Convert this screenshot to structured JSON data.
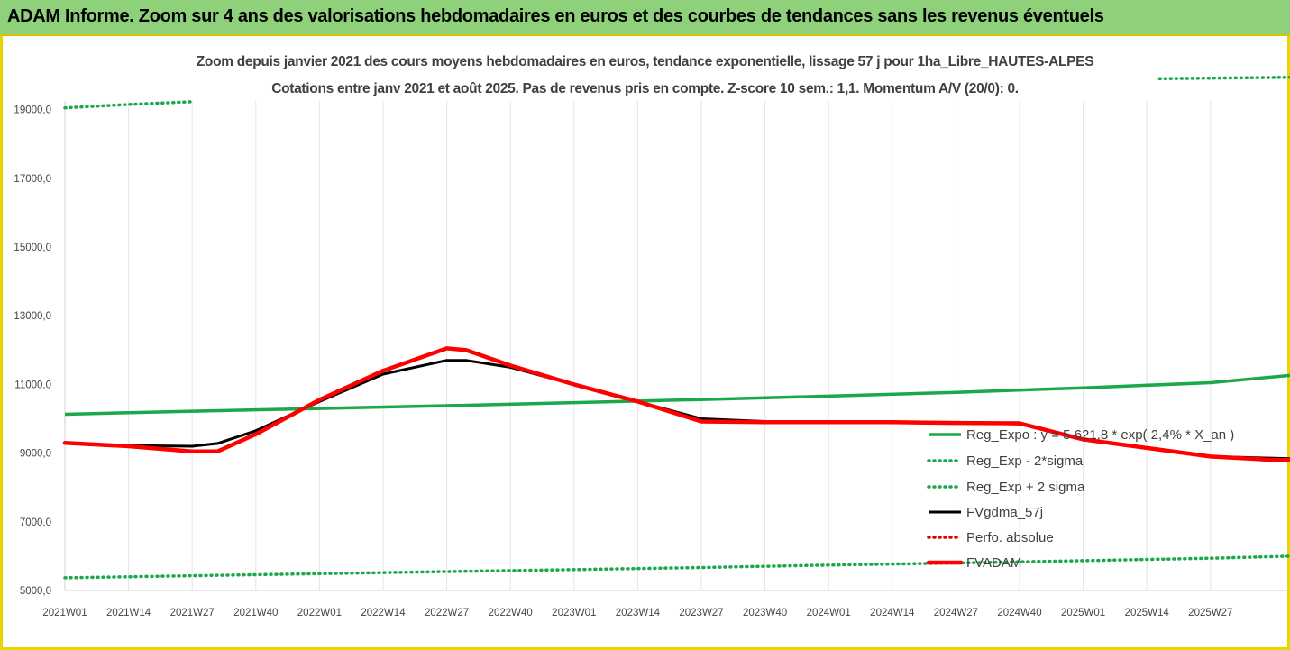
{
  "banner": {
    "title": "ADAM Informe. Zoom sur 4 ans des valorisations hebdomadaires en euros et des courbes de tendances sans les revenus éventuels"
  },
  "chart_data": {
    "type": "line",
    "title": "Zoom depuis janvier 2021 des cours moyens hebdomadaires en euros, tendance exponentielle, lissage 57 j pour 1ha_Libre_HAUTES-ALPES",
    "subtitle": "Cotations entre janv 2021 et août 2025.  Pas de revenus pris en compte. Z-score 10 sem.: 1,1. Momentum A/V (20/0): 0.",
    "xlabel": "",
    "ylabel": "",
    "ylim": [
      5000,
      20000
    ],
    "yticks": [
      "5000,0",
      "7000,0",
      "9000,0",
      "11000,0",
      "13000,0",
      "15000,0",
      "17000,0",
      "19000,0"
    ],
    "ytick_values": [
      5000,
      7000,
      9000,
      11000,
      13000,
      15000,
      17000,
      19000
    ],
    "xticks": [
      "2021W01",
      "2021W14",
      "2021W27",
      "2021W40",
      "2022W01",
      "2022W14",
      "2022W27",
      "2022W40",
      "2023W01",
      "2023W14",
      "2023W27",
      "2023W40",
      "2024W01",
      "2024W14",
      "2024W27",
      "2024W40",
      "2025W01",
      "2025W14",
      "2025W27"
    ],
    "x_index_range": [
      0,
      19.7
    ],
    "grid": "vertical",
    "legend_position": "right",
    "series": [
      {
        "name": "Reg_Expo : y = 5 621,8 * exp( 2,4% *  X_an )",
        "color": "#1aa84a",
        "style": "solid",
        "x": [
          0,
          2,
          4,
          6,
          8,
          10,
          12,
          14,
          16,
          18,
          19.7
        ],
        "values": [
          10130,
          10220,
          10300,
          10380,
          10470,
          10560,
          10660,
          10770,
          10900,
          11050,
          11340
        ]
      },
      {
        "name": "Reg_Exp - 2*sigma",
        "color": "#1aa84a",
        "style": "dotted",
        "x": [
          0,
          2,
          4,
          6,
          8,
          10,
          12,
          14,
          16,
          18,
          19.7
        ],
        "values": [
          5370,
          5430,
          5490,
          5550,
          5610,
          5670,
          5740,
          5800,
          5870,
          5940,
          6020
        ]
      },
      {
        "name": "Reg_Exp + 2 sigma",
        "color": "#1aa84a",
        "style": "dotted",
        "x": [
          0,
          1,
          2,
          17.2,
          19.7
        ],
        "values": [
          19050,
          19150,
          19230,
          19900,
          19950
        ]
      },
      {
        "name": "FVgdma_57j",
        "color": "#000000",
        "style": "solid",
        "x": [
          0,
          1,
          2,
          2.4,
          3,
          4,
          5,
          6,
          6.3,
          7,
          8,
          9,
          10,
          11,
          12,
          12.5,
          13,
          14,
          15,
          16,
          17,
          18,
          19,
          19.7
        ],
        "values": [
          9300,
          9220,
          9200,
          9280,
          9650,
          10500,
          11300,
          11700,
          11700,
          11500,
          11000,
          10500,
          10000,
          9920,
          9900,
          9900,
          9900,
          9880,
          9850,
          9400,
          9150,
          8900,
          8850,
          8820
        ]
      },
      {
        "name": "Perfo. absolue",
        "color": "#e00000",
        "style": "dotted",
        "x": [],
        "values": []
      },
      {
        "name": "FVADAM",
        "color": "#ff0000",
        "style": "solid-thick",
        "x": [
          0,
          1,
          2,
          2.4,
          3,
          4,
          5,
          6,
          6.3,
          7,
          8,
          9,
          10,
          11,
          12,
          12.5,
          13,
          14,
          15,
          16,
          17,
          18,
          19,
          19.7
        ],
        "values": [
          9300,
          9200,
          9050,
          9050,
          9550,
          10550,
          11400,
          12050,
          12000,
          11550,
          11000,
          10500,
          9920,
          9900,
          9900,
          9900,
          9900,
          9880,
          9870,
          9400,
          9150,
          8900,
          8800,
          8800
        ]
      }
    ]
  }
}
